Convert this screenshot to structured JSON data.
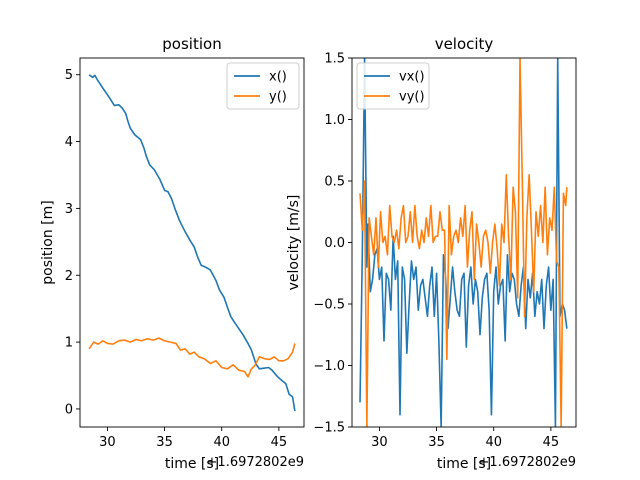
{
  "chart_data": [
    {
      "type": "line",
      "title": "position",
      "xlabel": "time [s]",
      "ylabel": "position [m]",
      "x_offset_label": "+1.6972802e9",
      "xlim": [
        27.6,
        47.2
      ],
      "ylim": [
        -0.27,
        5.25
      ],
      "xticks": [
        30,
        35,
        40,
        45
      ],
      "yticks": [
        0,
        1,
        2,
        3,
        4,
        5
      ],
      "grid": false,
      "legend": "top-right",
      "series": [
        {
          "name": "x()",
          "color": "#1f77b4",
          "x": [
            28.4,
            28.7,
            28.9,
            29.1,
            29.4,
            29.8,
            30.2,
            30.6,
            31.0,
            31.3,
            31.6,
            31.8,
            32.0,
            32.4,
            32.9,
            33.2,
            33.4,
            33.7,
            34.1,
            34.6,
            35.0,
            35.3,
            35.6,
            35.9,
            36.3,
            36.8,
            37.2,
            37.6,
            37.9,
            38.2,
            38.6,
            39.0,
            39.5,
            39.8,
            40.2,
            40.5,
            40.8,
            41.1,
            41.5,
            41.9,
            42.3,
            42.6,
            43.0,
            43.3,
            43.7,
            44.1,
            44.4,
            44.9,
            45.3,
            45.6,
            45.9,
            46.2,
            46.4
          ],
          "y": [
            5.0,
            4.96,
            4.99,
            4.93,
            4.85,
            4.75,
            4.65,
            4.54,
            4.55,
            4.5,
            4.42,
            4.3,
            4.2,
            4.1,
            4.03,
            3.9,
            3.78,
            3.65,
            3.58,
            3.43,
            3.27,
            3.25,
            3.15,
            3.0,
            2.82,
            2.65,
            2.53,
            2.42,
            2.27,
            2.15,
            2.12,
            2.08,
            1.92,
            1.78,
            1.67,
            1.52,
            1.38,
            1.3,
            1.2,
            1.1,
            0.98,
            0.88,
            0.67,
            0.6,
            0.61,
            0.62,
            0.58,
            0.48,
            0.42,
            0.38,
            0.22,
            0.18,
            -0.03
          ]
        },
        {
          "name": "y()",
          "color": "#ff7f0e",
          "x": [
            28.4,
            28.8,
            29.2,
            29.6,
            30.0,
            30.5,
            31.0,
            31.5,
            32.0,
            32.5,
            33.0,
            33.5,
            34.0,
            34.5,
            35.0,
            35.5,
            36.0,
            36.4,
            36.8,
            37.2,
            37.6,
            38.0,
            38.5,
            39.0,
            39.5,
            40.0,
            40.5,
            41.0,
            41.5,
            42.0,
            42.3,
            42.6,
            42.9,
            43.3,
            43.8,
            44.2,
            44.6,
            45.0,
            45.4,
            45.8,
            46.2,
            46.4
          ],
          "y": [
            0.9,
            1.0,
            0.97,
            1.02,
            0.98,
            0.97,
            1.02,
            1.03,
            1.0,
            1.04,
            1.02,
            1.05,
            1.03,
            1.06,
            1.02,
            1.0,
            0.98,
            0.88,
            0.9,
            0.82,
            0.85,
            0.78,
            0.75,
            0.68,
            0.72,
            0.62,
            0.6,
            0.66,
            0.58,
            0.56,
            0.48,
            0.6,
            0.65,
            0.78,
            0.75,
            0.74,
            0.78,
            0.72,
            0.72,
            0.75,
            0.85,
            0.98
          ]
        }
      ]
    },
    {
      "type": "line",
      "title": "velocity",
      "xlabel": "time [s]",
      "ylabel": "velocity [m/s]",
      "x_offset_label": "+1.6972802e9",
      "xlim": [
        27.6,
        47.2
      ],
      "ylim": [
        -1.5,
        1.5
      ],
      "xticks": [
        30,
        35,
        40,
        45
      ],
      "yticks": [
        -1.5,
        -1.0,
        -0.5,
        0.0,
        0.5,
        1.0,
        1.5
      ],
      "ytick_labels": [
        "−1.5",
        "−1.0",
        "−0.5",
        "0.0",
        "0.5",
        "1.0",
        "1.5"
      ],
      "grid": false,
      "legend": "top-left",
      "series": [
        {
          "name": "vx()",
          "color": "#1f77b4",
          "x": [
            28.3,
            28.5,
            28.7,
            28.9,
            29.0,
            29.2,
            29.4,
            29.6,
            29.8,
            30.0,
            30.2,
            30.4,
            30.6,
            30.8,
            31.0,
            31.2,
            31.4,
            31.6,
            31.8,
            32.0,
            32.2,
            32.4,
            32.6,
            32.8,
            33.0,
            33.2,
            33.4,
            33.6,
            33.8,
            34.0,
            34.2,
            34.4,
            34.6,
            34.8,
            35.0,
            35.2,
            35.4,
            35.6,
            35.8,
            36.0,
            36.2,
            36.4,
            36.6,
            36.8,
            37.0,
            37.2,
            37.4,
            37.6,
            37.8,
            38.0,
            38.2,
            38.4,
            38.6,
            38.8,
            39.0,
            39.2,
            39.4,
            39.6,
            39.8,
            40.0,
            40.2,
            40.4,
            40.6,
            40.8,
            41.0,
            41.2,
            41.4,
            41.6,
            41.8,
            42.0,
            42.2,
            42.4,
            42.6,
            42.8,
            43.0,
            43.2,
            43.4,
            43.6,
            43.8,
            44.0,
            44.2,
            44.4,
            44.6,
            44.8,
            45.0,
            45.2,
            45.4,
            45.6,
            45.8,
            46.0,
            46.2,
            46.4
          ],
          "y": [
            -1.3,
            -0.1,
            1.5,
            -0.2,
            0.15,
            -0.4,
            -0.3,
            -0.1,
            -0.05,
            -0.3,
            -0.2,
            -0.8,
            -0.25,
            -0.3,
            -0.55,
            0.05,
            -0.3,
            -0.15,
            -1.4,
            -0.2,
            -0.3,
            -0.9,
            -0.5,
            -0.15,
            -0.3,
            -0.2,
            -0.55,
            -0.35,
            -0.3,
            -0.45,
            -0.6,
            -0.35,
            -0.2,
            -0.6,
            -0.25,
            -0.8,
            -1.5,
            -0.1,
            -0.3,
            -0.7,
            -0.45,
            -0.2,
            -0.4,
            -0.55,
            -0.6,
            -0.3,
            -0.25,
            -0.85,
            -0.35,
            -0.2,
            -0.5,
            -0.3,
            -0.4,
            -0.75,
            -0.45,
            -0.3,
            -0.25,
            -0.55,
            -1.4,
            -0.4,
            -0.2,
            -0.5,
            -0.35,
            -0.3,
            -0.8,
            -0.1,
            -0.4,
            -0.25,
            -0.3,
            -0.5,
            -0.6,
            -0.35,
            -0.2,
            -0.7,
            -0.3,
            -0.45,
            -0.25,
            -0.6,
            -0.4,
            -0.5,
            -0.3,
            -0.7,
            -0.35,
            -0.2,
            -0.55,
            -0.3,
            -1.5,
            1.5,
            -0.6,
            -0.5,
            -0.55,
            -0.7
          ]
        },
        {
          "name": "vy()",
          "color": "#ff7f0e",
          "x": [
            28.3,
            28.5,
            28.7,
            28.9,
            29.1,
            29.3,
            29.5,
            29.7,
            29.9,
            30.1,
            30.3,
            30.5,
            30.7,
            30.9,
            31.1,
            31.3,
            31.5,
            31.7,
            31.9,
            32.1,
            32.3,
            32.5,
            32.7,
            32.9,
            33.1,
            33.3,
            33.5,
            33.7,
            33.9,
            34.1,
            34.3,
            34.5,
            34.7,
            34.9,
            35.1,
            35.3,
            35.5,
            35.7,
            35.9,
            36.1,
            36.3,
            36.5,
            36.7,
            36.9,
            37.1,
            37.3,
            37.5,
            37.7,
            37.9,
            38.1,
            38.3,
            38.5,
            38.7,
            38.9,
            39.1,
            39.3,
            39.5,
            39.7,
            39.9,
            40.1,
            40.3,
            40.5,
            40.7,
            40.9,
            41.1,
            41.3,
            41.5,
            41.7,
            41.9,
            42.1,
            42.3,
            42.5,
            42.7,
            42.9,
            43.1,
            43.3,
            43.5,
            43.7,
            43.9,
            44.1,
            44.3,
            44.5,
            44.7,
            44.9,
            45.1,
            45.3,
            45.5,
            45.7,
            45.9,
            46.1,
            46.3,
            46.4
          ],
          "y": [
            0.4,
            0.1,
            0.5,
            -1.5,
            0.2,
            0.05,
            -0.1,
            0.2,
            -0.2,
            0.25,
            0.0,
            0.05,
            -0.1,
            0.3,
            0.05,
            0.0,
            0.1,
            -0.05,
            0.2,
            0.3,
            0.0,
            0.05,
            0.25,
            0.0,
            0.3,
            0.05,
            -0.05,
            0.1,
            0.0,
            0.2,
            0.05,
            0.3,
            0.0,
            0.05,
            0.05,
            0.25,
            0.1,
            0.1,
            -0.95,
            0.3,
            -0.1,
            0.05,
            0.1,
            0.0,
            0.2,
            0.05,
            0.3,
            -0.2,
            0.1,
            0.25,
            -0.3,
            0.15,
            0.0,
            -0.2,
            0.05,
            0.1,
            0.0,
            -0.25,
            0.0,
            0.15,
            -0.05,
            -0.35,
            0.15,
            0.0,
            0.55,
            0.05,
            -0.3,
            0.45,
            0.25,
            -0.45,
            1.5,
            0.5,
            -0.6,
            0.2,
            0.55,
            0.1,
            -0.4,
            0.25,
            0.05,
            0.3,
            0.0,
            0.45,
            -0.1,
            0.2,
            0.1,
            0.45,
            -0.15,
            -0.2,
            -1.5,
            0.4,
            0.3,
            0.45
          ]
        }
      ]
    }
  ]
}
